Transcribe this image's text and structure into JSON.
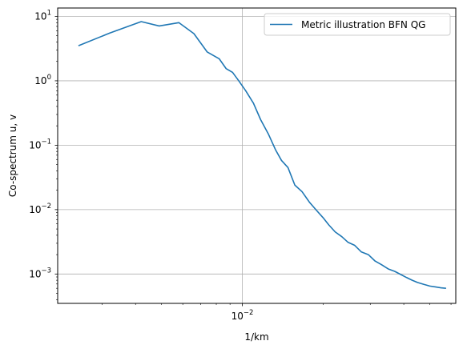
{
  "chart_data": {
    "type": "line",
    "xlabel": "1/km",
    "ylabel": "Co-spectrum u, v",
    "x_scale": "log",
    "y_scale": "log",
    "xlim": [
      0.00205,
      0.0625
    ],
    "ylim": [
      0.00035,
      13.5
    ],
    "grid": true,
    "legend": "top-right",
    "x_ticks": [
      {
        "value": 0.01,
        "label": "10",
        "exp": "−2"
      }
    ],
    "y_ticks": [
      {
        "value": 0.001,
        "label": "10",
        "exp": "−3"
      },
      {
        "value": 0.01,
        "label": "10",
        "exp": "−2"
      },
      {
        "value": 0.1,
        "label": "10",
        "exp": "−1"
      },
      {
        "value": 1,
        "label": "10",
        "exp": "0"
      },
      {
        "value": 10,
        "label": "10",
        "exp": "1"
      }
    ],
    "series": [
      {
        "name": "Metric illustration BFN QG",
        "color": "#1f77b4",
        "x": [
          0.00245,
          0.0032,
          0.0042,
          0.0049,
          0.0058,
          0.0066,
          0.0074,
          0.0082,
          0.0087,
          0.0092,
          0.0097,
          0.0103,
          0.011,
          0.0117,
          0.0125,
          0.0133,
          0.014,
          0.0148,
          0.0157,
          0.0167,
          0.0178,
          0.019,
          0.02,
          0.021,
          0.0222,
          0.0235,
          0.0248,
          0.0262,
          0.0278,
          0.0295,
          0.0312,
          0.033,
          0.035,
          0.037,
          0.039,
          0.041,
          0.043,
          0.045,
          0.0475,
          0.05,
          0.0525,
          0.055,
          0.0575
        ],
        "y": [
          3.5,
          5.5,
          8.3,
          7.1,
          8.0,
          5.4,
          2.8,
          2.2,
          1.55,
          1.35,
          1.0,
          0.7,
          0.45,
          0.25,
          0.15,
          0.085,
          0.058,
          0.045,
          0.024,
          0.019,
          0.013,
          0.0095,
          0.0075,
          0.0058,
          0.0045,
          0.0038,
          0.0031,
          0.0028,
          0.0022,
          0.002,
          0.0016,
          0.0014,
          0.0012,
          0.0011,
          0.00098,
          0.00088,
          0.0008,
          0.00074,
          0.00069,
          0.00065,
          0.00063,
          0.00061,
          0.0006
        ]
      }
    ]
  }
}
